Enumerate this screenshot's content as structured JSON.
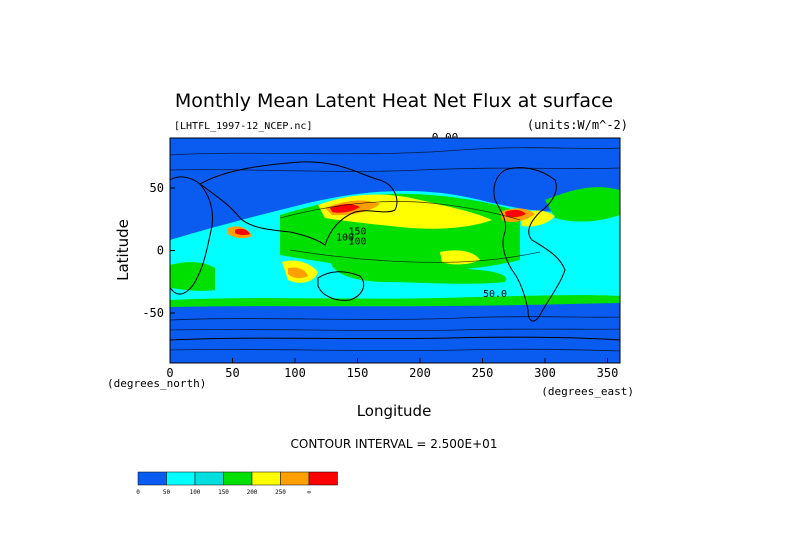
{
  "chart_data": {
    "type": "heatmap",
    "title": "Monthly Mean Latent Heat Net Flux at surface",
    "file_label": "[LHTFL_1997-12_NCEP.nc]",
    "units_label": "(units:W/m^-2)",
    "top_contour_label": "0.00",
    "xlabel": "Longitude",
    "ylabel": "Latitude",
    "x_unit_label": "(degrees_east)",
    "y_unit_label": "(degrees_north)",
    "xlim": [
      0,
      360
    ],
    "ylim": [
      -90,
      90
    ],
    "x_ticks": [
      0,
      50,
      100,
      150,
      200,
      250,
      300,
      350
    ],
    "y_ticks": [
      -50,
      0,
      50
    ],
    "contour_interval_text": "CONTOUR INTERVAL = 2.500E+01",
    "colorbar": {
      "levels": [
        "0",
        "50",
        "100",
        "150",
        "200",
        "250",
        "∞"
      ],
      "colors": [
        "#0a5cf0",
        "#00ffff",
        "#00dede",
        "#00e000",
        "#ffff00",
        "#ffa000",
        "#ff0000"
      ]
    },
    "field_labels": [
      {
        "text": "100",
        "lon": 140,
        "lat": 8
      },
      {
        "text": "150",
        "lon": 150,
        "lat": 13
      },
      {
        "text": "100",
        "lon": 150,
        "lat": 5
      },
      {
        "text": "50.0",
        "lon": 260,
        "lat": -37
      }
    ],
    "regions": [
      {
        "lon": [
          162,
          290
        ],
        "lat": [
          66,
          78
        ],
        "level": "low"
      },
      {
        "lon": [
          10,
          18
        ],
        "lat": [
          62,
          72
        ],
        "level": "low"
      }
    ]
  }
}
